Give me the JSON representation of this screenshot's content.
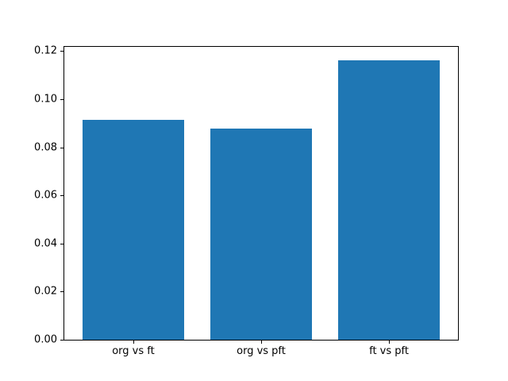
{
  "chart_data": {
    "type": "bar",
    "title": "",
    "xlabel": "",
    "ylabel": "",
    "categories": [
      "org vs ft",
      "org vs pft",
      "ft vs pft"
    ],
    "values": [
      0.0916,
      0.0879,
      0.1161
    ],
    "ylim": [
      0,
      0.1218
    ],
    "yticks": [
      "0.00",
      "0.02",
      "0.04",
      "0.06",
      "0.08",
      "0.10",
      "0.12"
    ],
    "ytick_values": [
      0.0,
      0.02,
      0.04,
      0.06,
      0.08,
      0.1,
      0.12
    ],
    "bar_color": "#1f77b4",
    "spine_color": "#000000",
    "background_color": "#ffffff",
    "grid": false,
    "legend": null,
    "bar_width_fraction": 0.8,
    "x_positions": [
      0,
      1,
      2
    ],
    "xlim": [
      -0.54,
      2.54
    ]
  }
}
